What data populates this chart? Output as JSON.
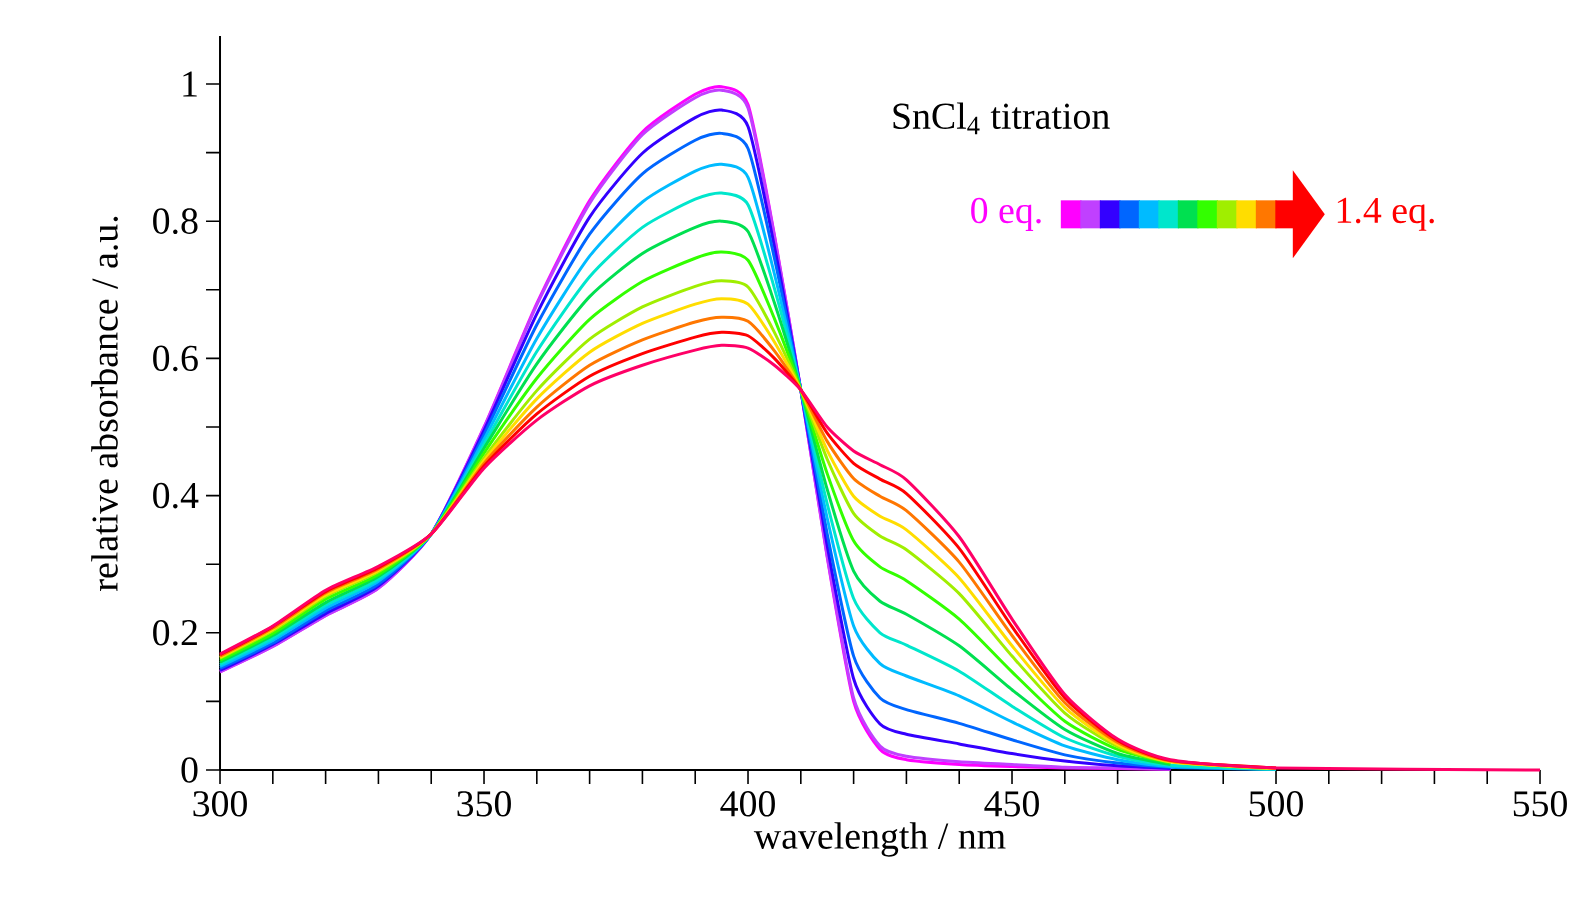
{
  "chart_data": {
    "type": "line",
    "xlabel": "wavelength / nm",
    "ylabel": "relative absorbance / a.u.",
    "annotations": [
      "SnCl$_{4}$ titration",
      "0 eq.",
      "1.4 eq."
    ],
    "x": [
      300,
      310,
      320,
      330,
      340,
      350,
      360,
      370,
      380,
      390,
      395,
      400,
      405,
      410,
      415,
      420,
      425,
      430,
      440,
      450,
      460,
      470,
      480,
      500,
      550
    ],
    "xlim": [
      300,
      550
    ],
    "xticks": [
      300,
      350,
      400,
      450,
      500,
      550
    ],
    "ylim": [
      0,
      1.07
    ],
    "yticks": [
      0,
      0.2,
      0.4,
      0.6,
      0.8,
      1
    ],
    "grid": false,
    "marker": "none",
    "line_style": "solid",
    "series": [
      {
        "color": "#ff00ff",
        "values": [
          0.143,
          0.18,
          0.225,
          0.265,
          0.344,
          0.5,
          0.68,
          0.83,
          0.93,
          0.985,
          0.996,
          0.97,
          0.78,
          0.554,
          0.31,
          0.1,
          0.03,
          0.015,
          0.008,
          0.005,
          0.003,
          0.002,
          0.001,
          null,
          null
        ]
      },
      {
        "color": "#c040ff",
        "values": [
          0.143,
          0.18,
          0.225,
          0.265,
          0.344,
          0.499,
          0.678,
          0.826,
          0.926,
          0.98,
          0.991,
          0.965,
          0.778,
          0.554,
          0.312,
          0.105,
          0.035,
          0.02,
          0.012,
          0.008,
          0.004,
          0.003,
          0.001,
          null,
          null
        ]
      },
      {
        "color": "#3300ff",
        "values": [
          0.145,
          0.183,
          0.228,
          0.268,
          0.344,
          0.495,
          0.665,
          0.806,
          0.899,
          0.951,
          0.962,
          0.938,
          0.763,
          0.554,
          0.327,
          0.133,
          0.067,
          0.052,
          0.038,
          0.024,
          0.013,
          0.006,
          0.002,
          null,
          null
        ]
      },
      {
        "color": "#0066ff",
        "values": [
          0.148,
          0.185,
          0.232,
          0.271,
          0.344,
          0.489,
          0.649,
          0.781,
          0.869,
          0.918,
          0.928,
          0.906,
          0.746,
          0.554,
          0.344,
          0.166,
          0.105,
          0.088,
          0.068,
          0.044,
          0.022,
          0.01,
          0.004,
          0.001,
          null
        ]
      },
      {
        "color": "#00bbff",
        "values": [
          0.151,
          0.189,
          0.236,
          0.275,
          0.344,
          0.482,
          0.629,
          0.749,
          0.828,
          0.873,
          0.883,
          0.864,
          0.723,
          0.554,
          0.367,
          0.21,
          0.155,
          0.137,
          0.108,
          0.07,
          0.035,
          0.015,
          0.005,
          0.001,
          null
        ]
      },
      {
        "color": "#00e6cc",
        "values": [
          0.154,
          0.192,
          0.24,
          0.278,
          0.344,
          0.475,
          0.61,
          0.719,
          0.791,
          0.832,
          0.841,
          0.824,
          0.702,
          0.554,
          0.388,
          0.25,
          0.2,
          0.182,
          0.144,
          0.093,
          0.047,
          0.02,
          0.007,
          0.001,
          null
        ]
      },
      {
        "color": "#00e050",
        "values": [
          0.157,
          0.196,
          0.244,
          0.282,
          0.344,
          0.469,
          0.592,
          0.69,
          0.753,
          0.791,
          0.8,
          0.785,
          0.681,
          0.554,
          0.409,
          0.29,
          0.246,
          0.227,
          0.181,
          0.117,
          0.059,
          0.024,
          0.008,
          null,
          null
        ]
      },
      {
        "color": "#33ff00",
        "values": [
          0.16,
          0.199,
          0.249,
          0.285,
          0.344,
          0.462,
          0.571,
          0.657,
          0.712,
          0.746,
          0.755,
          0.743,
          0.658,
          0.554,
          0.432,
          0.334,
          0.296,
          0.276,
          0.22,
          0.143,
          0.071,
          0.03,
          0.01,
          null,
          null
        ]
      },
      {
        "color": "#a0ee00",
        "values": [
          0.163,
          0.203,
          0.253,
          0.289,
          0.344,
          0.455,
          0.553,
          0.628,
          0.675,
          0.705,
          0.713,
          0.704,
          0.638,
          0.554,
          0.453,
          0.374,
          0.341,
          0.321,
          0.257,
          0.166,
          0.083,
          0.034,
          0.012,
          0.002,
          null
        ]
      },
      {
        "color": "#ffdd00",
        "values": [
          0.164,
          0.205,
          0.255,
          0.291,
          0.344,
          0.451,
          0.541,
          0.609,
          0.651,
          0.679,
          0.687,
          0.679,
          0.624,
          0.554,
          0.466,
          0.399,
          0.37,
          0.35,
          0.28,
          0.181,
          0.091,
          0.037,
          0.012,
          0.002,
          null
        ]
      },
      {
        "color": "#ff7700",
        "values": [
          0.166,
          0.207,
          0.258,
          0.293,
          0.344,
          0.447,
          0.529,
          0.59,
          0.627,
          0.653,
          0.66,
          0.654,
          0.611,
          0.554,
          0.479,
          0.425,
          0.399,
          0.378,
          0.303,
          0.196,
          0.098,
          0.04,
          0.013,
          0.003,
          null
        ]
      },
      {
        "color": "#ff0000",
        "values": [
          0.168,
          0.209,
          0.26,
          0.295,
          0.344,
          0.443,
          0.519,
          0.574,
          0.607,
          0.631,
          0.638,
          0.633,
          0.6,
          0.554,
          0.491,
          0.447,
          0.424,
          0.403,
          0.323,
          0.209,
          0.105,
          0.043,
          0.014,
          0.003,
          null
        ]
      },
      {
        "color": "#ff0066",
        "values": [
          0.169,
          0.21,
          0.262,
          0.297,
          0.344,
          0.44,
          0.51,
          0.56,
          0.59,
          0.612,
          0.619,
          0.615,
          0.59,
          0.554,
          0.5,
          0.465,
          0.445,
          0.423,
          0.34,
          0.22,
          0.11,
          0.045,
          0.015,
          0.003,
          0
        ]
      }
    ]
  }
}
